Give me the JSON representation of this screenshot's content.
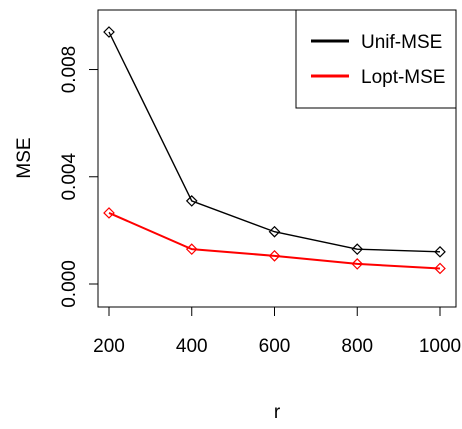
{
  "chart_data": {
    "type": "line",
    "title": "",
    "xlabel": "r",
    "ylabel": "MSE",
    "x": [
      200,
      400,
      600,
      800,
      1000
    ],
    "x_ticks": [
      "200",
      "400",
      "600",
      "800",
      "1000"
    ],
    "y_ticks": [
      "0.000",
      "0.004",
      "0.008"
    ],
    "y_tick_values": [
      0,
      0.004,
      0.008
    ],
    "xlim": [
      200,
      1000
    ],
    "ylim": [
      0,
      0.0095
    ],
    "grid": false,
    "legend_position": "top-right",
    "series": [
      {
        "name": "Unif-MSE",
        "color": "#000000",
        "values": [
          0.0094,
          0.0031,
          0.00195,
          0.0013,
          0.0012
        ]
      },
      {
        "name": "Lopt-MSE",
        "color": "#ff0000",
        "values": [
          0.00265,
          0.0013,
          0.00105,
          0.00075,
          0.00058
        ]
      }
    ],
    "marker": "diamond"
  }
}
